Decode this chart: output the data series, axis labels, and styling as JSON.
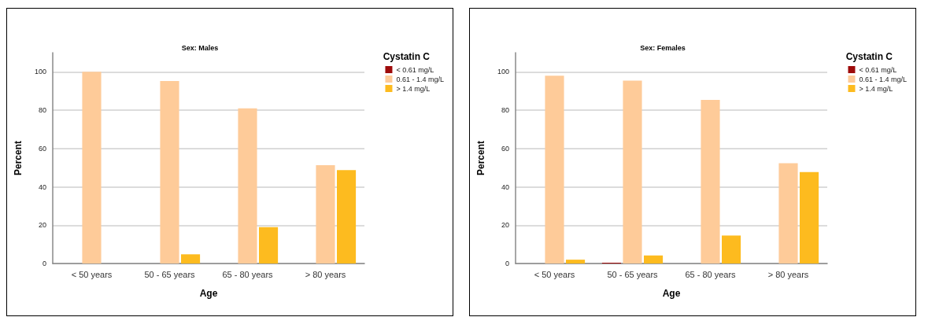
{
  "chart_data": [
    {
      "type": "bar",
      "title": "Sex: Males",
      "xlabel": "Age",
      "ylabel": "Percent",
      "legend_title": "Cystatin C",
      "categories": [
        "< 50 years",
        "50 - 65 years",
        "65 - 80 years",
        "> 80 years"
      ],
      "series": [
        {
          "name": "< 0.61 mg/L",
          "color": "#9e0b0b",
          "values": [
            0,
            0,
            0,
            0
          ]
        },
        {
          "name": "0.61 - 1.4 mg/L",
          "color": "#fecb99",
          "values": [
            100,
            95.2,
            81,
            51.3
          ]
        },
        {
          "name": "> 1.4 mg/L",
          "color": "#fdbb1f",
          "values": [
            0,
            4.8,
            19,
            48.7
          ]
        }
      ],
      "ylim": [
        0,
        110
      ],
      "yticks": [
        0,
        20,
        40,
        60,
        80,
        100
      ],
      "grid": "y",
      "legend": "top right"
    },
    {
      "type": "bar",
      "title": "Sex: Females",
      "xlabel": "Age",
      "ylabel": "Percent",
      "legend_title": "Cystatin C",
      "categories": [
        "< 50 years",
        "50 - 65 years",
        "65 - 80 years",
        "> 80 years"
      ],
      "series": [
        {
          "name": "< 0.61 mg/L",
          "color": "#9e0b0b",
          "values": [
            0,
            0.4,
            0,
            0
          ]
        },
        {
          "name": "0.61 - 1.4 mg/L",
          "color": "#fecb99",
          "values": [
            98,
            95.4,
            85.4,
            52.3
          ]
        },
        {
          "name": "> 1.4 mg/L",
          "color": "#fdbb1f",
          "values": [
            2,
            4.2,
            14.6,
            47.7
          ]
        }
      ],
      "ylim": [
        0,
        110
      ],
      "yticks": [
        0,
        20,
        40,
        60,
        80,
        100
      ],
      "grid": "y",
      "legend": "top right"
    }
  ]
}
